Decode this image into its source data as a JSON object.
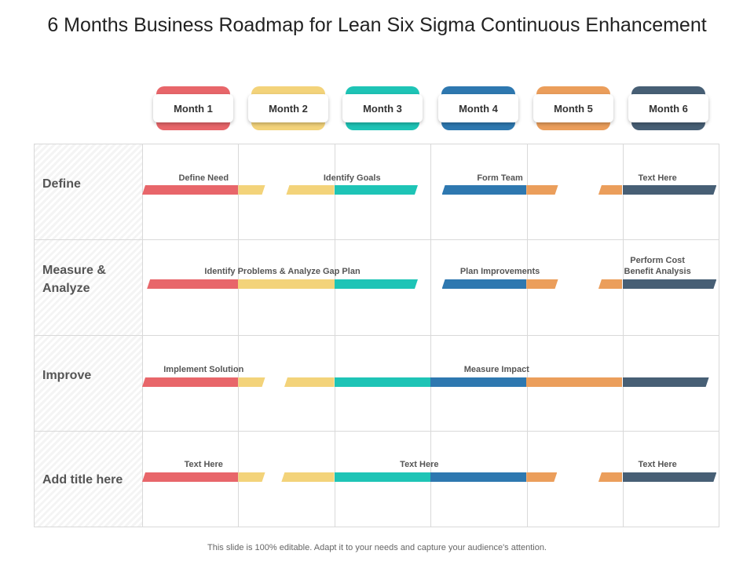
{
  "title": "6 Months Business Roadmap for Lean Six Sigma Continuous Enhancement",
  "colors": {
    "month1": "#e8666a",
    "month2": "#f3d37a",
    "month3": "#1ec4b6",
    "month4": "#2e78b0",
    "month5": "#eb9e5b",
    "month6": "#475f75"
  },
  "months": [
    "Month 1",
    "Month 2",
    "Month 3",
    "Month 4",
    "Month 5",
    "Month 6"
  ],
  "rows": [
    {
      "label": "Define",
      "bars": [
        {
          "label": "Define Need",
          "segments": [
            {
              "month": 1,
              "from": 0,
              "to": 1
            },
            {
              "month": 2,
              "from": 1,
              "to": 1.28
            }
          ]
        },
        {
          "label": "Identify Goals",
          "segments": [
            {
              "month": 2,
              "from": 1.5,
              "to": 2
            },
            {
              "month": 3,
              "from": 2,
              "to": 2.87
            }
          ]
        },
        {
          "label": "Form Team",
          "segments": [
            {
              "month": 4,
              "from": 3.12,
              "to": 4
            },
            {
              "month": 5,
              "from": 4,
              "to": 4.33
            }
          ]
        },
        {
          "label": "Text Here",
          "segments": [
            {
              "month": 5,
              "from": 4.75,
              "to": 5
            },
            {
              "month": 6,
              "from": 5,
              "to": 5.98
            }
          ]
        }
      ]
    },
    {
      "label": "Measure & Analyze",
      "bars": [
        {
          "label": "Identify  Problems & Analyze  Gap Plan",
          "segments": [
            {
              "month": 1,
              "from": 0.05,
              "to": 1
            },
            {
              "month": 2,
              "from": 1,
              "to": 2
            },
            {
              "month": 3,
              "from": 2,
              "to": 2.87
            }
          ]
        },
        {
          "label": "Plan Improvements",
          "segments": [
            {
              "month": 4,
              "from": 3.12,
              "to": 4
            },
            {
              "month": 5,
              "from": 4,
              "to": 4.33
            }
          ]
        },
        {
          "label": "Perform Cost\nBenefit Analysis",
          "segments": [
            {
              "month": 5,
              "from": 4.75,
              "to": 5
            },
            {
              "month": 6,
              "from": 5,
              "to": 5.98
            }
          ]
        }
      ]
    },
    {
      "label": "Improve",
      "bars": [
        {
          "label": "Implement Solution",
          "segments": [
            {
              "month": 1,
              "from": 0,
              "to": 1
            },
            {
              "month": 2,
              "from": 1,
              "to": 1.28
            }
          ]
        },
        {
          "label": "Measure Impact",
          "segments": [
            {
              "month": 2,
              "from": 1.48,
              "to": 2
            },
            {
              "month": 3,
              "from": 2,
              "to": 3
            },
            {
              "month": 4,
              "from": 3,
              "to": 4
            },
            {
              "month": 5,
              "from": 4,
              "to": 5
            },
            {
              "month": 6,
              "from": 5,
              "to": 5.9
            }
          ]
        }
      ]
    },
    {
      "label": "Add title here",
      "bars": [
        {
          "label": "Text Here",
          "segments": [
            {
              "month": 1,
              "from": 0,
              "to": 1
            },
            {
              "month": 2,
              "from": 1,
              "to": 1.28
            }
          ]
        },
        {
          "label": "Text Here",
          "segments": [
            {
              "month": 2,
              "from": 1.45,
              "to": 2
            },
            {
              "month": 3,
              "from": 2,
              "to": 3
            },
            {
              "month": 4,
              "from": 3,
              "to": 4
            },
            {
              "month": 5,
              "from": 4,
              "to": 4.32
            }
          ]
        },
        {
          "label": "Text Here",
          "segments": [
            {
              "month": 5,
              "from": 4.75,
              "to": 5
            },
            {
              "month": 6,
              "from": 5,
              "to": 5.98
            }
          ]
        }
      ]
    }
  ],
  "footer": "This slide is 100% editable. Adapt it to your needs and capture your audience's attention."
}
